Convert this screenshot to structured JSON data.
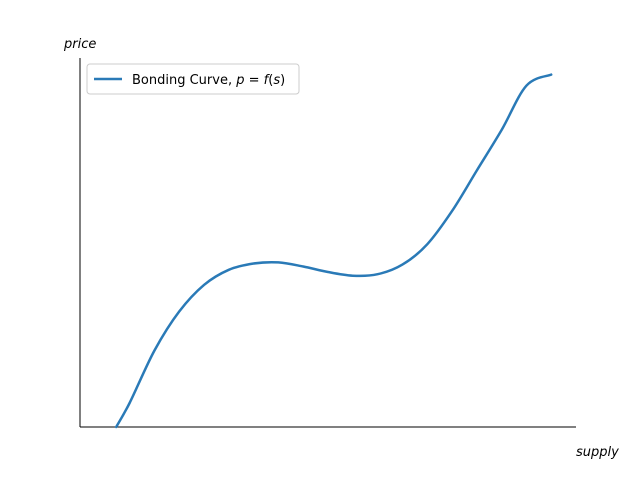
{
  "chart_data": {
    "type": "line",
    "title": "",
    "xlabel": "supply",
    "ylabel": "price",
    "grid": false,
    "ticks_visible": false,
    "legend_placement": "top-left",
    "xlim": [
      0,
      10
    ],
    "ylim": [
      0,
      100
    ],
    "series": [
      {
        "name": "Bonding Curve, p = f(s)",
        "legend_parts": {
          "prefix": "Bonding Curve, ",
          "p": "p",
          "eq": " = ",
          "f": "f",
          "paren_open": "(",
          "s": "s",
          "paren_close": ")"
        },
        "color": "#2a7ab7",
        "x": [
          0.73,
          1.0,
          1.5,
          2.0,
          2.5,
          3.0,
          3.5,
          4.0,
          4.5,
          5.0,
          5.5,
          6.0,
          6.5,
          7.0,
          7.5,
          8.0,
          8.5,
          9.0,
          9.5
        ],
        "y": [
          0.0,
          6.5,
          20.7,
          31.3,
          38.5,
          42.6,
          44.3,
          44.6,
          43.5,
          42.0,
          41.0,
          41.4,
          44.0,
          49.5,
          58.5,
          69.5,
          80.5,
          92.5,
          95.5
        ]
      }
    ]
  }
}
